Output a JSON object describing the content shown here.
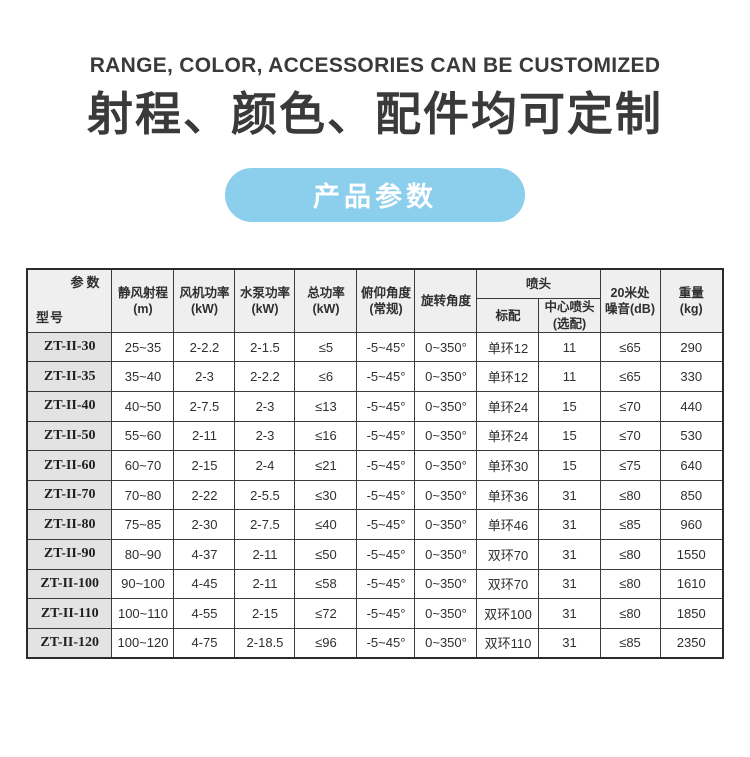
{
  "header": {
    "subtitle_en": "RANGE, COLOR, ACCESSORIES CAN BE CUSTOMIZED",
    "title_zh": "射程、颜色、配件均可定制",
    "badge_label": "产品参数"
  },
  "colors": {
    "accent_blue": "#8ccfec",
    "title_gray": "#3a3a3a",
    "table_border": "#3c3c3c",
    "header_bg": "#efefef",
    "model_cell_bg": "#e3e3e3"
  },
  "table": {
    "corner_top": "参数",
    "corner_bottom": "型号",
    "headers": [
      {
        "l1": "静风射程",
        "l2": "(m)"
      },
      {
        "l1": "风机功率",
        "l2": "(kW)"
      },
      {
        "l1": "水泵功率",
        "l2": "(kW)"
      },
      {
        "l1": "总功率",
        "l2": "(kW)"
      },
      {
        "l1": "俯仰角度",
        "l2": "(常规)"
      },
      {
        "l1": "旋转角度",
        "l2": ""
      }
    ],
    "spray_group": {
      "label": "喷头",
      "sub_std": {
        "l1": "标配",
        "l2": ""
      },
      "sub_center": {
        "l1": "中心喷头",
        "l2": "(选配)"
      }
    },
    "tail_headers": [
      {
        "l1": "20米处",
        "l2": "噪音(dB)"
      },
      {
        "l1": "重量",
        "l2": "(kg)"
      }
    ],
    "rows": [
      {
        "model": "ZT-II-30",
        "cells": [
          "25~35",
          "2-2.2",
          "2-1.5",
          "≤5",
          "-5~45°",
          "0~350°",
          "单环12",
          "11",
          "≤65",
          "290"
        ]
      },
      {
        "model": "ZT-II-35",
        "cells": [
          "35~40",
          "2-3",
          "2-2.2",
          "≤6",
          "-5~45°",
          "0~350°",
          "单环12",
          "11",
          "≤65",
          "330"
        ]
      },
      {
        "model": "ZT-II-40",
        "cells": [
          "40~50",
          "2-7.5",
          "2-3",
          "≤13",
          "-5~45°",
          "0~350°",
          "单环24",
          "15",
          "≤70",
          "440"
        ]
      },
      {
        "model": "ZT-II-50",
        "cells": [
          "55~60",
          "2-11",
          "2-3",
          "≤16",
          "-5~45°",
          "0~350°",
          "单环24",
          "15",
          "≤70",
          "530"
        ]
      },
      {
        "model": "ZT-II-60",
        "cells": [
          "60~70",
          "2-15",
          "2-4",
          "≤21",
          "-5~45°",
          "0~350°",
          "单环30",
          "15",
          "≤75",
          "640"
        ]
      },
      {
        "model": "ZT-II-70",
        "cells": [
          "70~80",
          "2-22",
          "2-5.5",
          "≤30",
          "-5~45°",
          "0~350°",
          "单环36",
          "31",
          "≤80",
          "850"
        ]
      },
      {
        "model": "ZT-II-80",
        "cells": [
          "75~85",
          "2-30",
          "2-7.5",
          "≤40",
          "-5~45°",
          "0~350°",
          "单环46",
          "31",
          "≤85",
          "960"
        ]
      },
      {
        "model": "ZT-II-90",
        "cells": [
          "80~90",
          "4-37",
          "2-11",
          "≤50",
          "-5~45°",
          "0~350°",
          "双环70",
          "31",
          "≤80",
          "1550"
        ]
      },
      {
        "model": "ZT-II-100",
        "cells": [
          "90~100",
          "4-45",
          "2-11",
          "≤58",
          "-5~45°",
          "0~350°",
          "双环70",
          "31",
          "≤80",
          "1610"
        ]
      },
      {
        "model": "ZT-II-110",
        "cells": [
          "100~110",
          "4-55",
          "2-15",
          "≤72",
          "-5~45°",
          "0~350°",
          "双环100",
          "31",
          "≤80",
          "1850"
        ]
      },
      {
        "model": "ZT-II-120",
        "cells": [
          "100~120",
          "4-75",
          "2-18.5",
          "≤96",
          "-5~45°",
          "0~350°",
          "双环110",
          "31",
          "≤85",
          "2350"
        ]
      }
    ]
  }
}
